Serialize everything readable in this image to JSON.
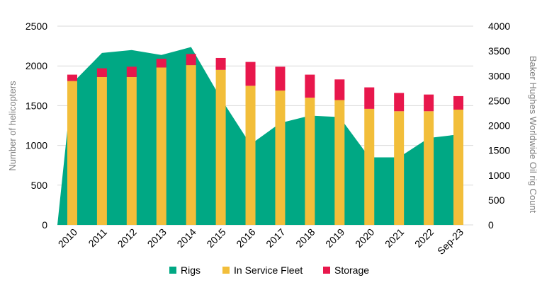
{
  "chart_data": {
    "type": "bar",
    "categories": [
      "2010",
      "2011",
      "2012",
      "2013",
      "2014",
      "2015",
      "2016",
      "2017",
      "2018",
      "2019",
      "2020",
      "2021",
      "2022",
      "Sep-23"
    ],
    "series": [
      {
        "name": "Rigs",
        "type": "area",
        "axis": "right",
        "color": "#00a884",
        "values": [
          2850,
          3460,
          3520,
          3420,
          3580,
          2550,
          1620,
          2050,
          2200,
          2170,
          1360,
          1360,
          1750,
          1820
        ]
      },
      {
        "name": "In Service Fleet",
        "type": "stacked-bar",
        "axis": "left",
        "color": "#f2be3a",
        "values": [
          1810,
          1860,
          1860,
          1980,
          2010,
          1950,
          1750,
          1690,
          1600,
          1570,
          1460,
          1430,
          1430,
          1450
        ]
      },
      {
        "name": "Storage",
        "type": "stacked-bar",
        "axis": "left",
        "color": "#e8174c",
        "values": [
          80,
          110,
          130,
          110,
          140,
          150,
          300,
          300,
          290,
          260,
          270,
          230,
          210,
          170
        ]
      }
    ],
    "xlabel": "",
    "ylabel": "Number of helicopters",
    "ylabel_right": "Baker Hughes Worldwide Oil rig Count",
    "ylim": [
      0,
      2500
    ],
    "ylim_right": [
      0,
      4000
    ],
    "yticks": [
      "0",
      "500",
      "1000",
      "1500",
      "2000",
      "2500"
    ],
    "yticks_right": [
      "0",
      "500",
      "1000",
      "1500",
      "2000",
      "2500",
      "3000",
      "3500",
      "4000"
    ],
    "grid": true,
    "legend": "bottom"
  }
}
